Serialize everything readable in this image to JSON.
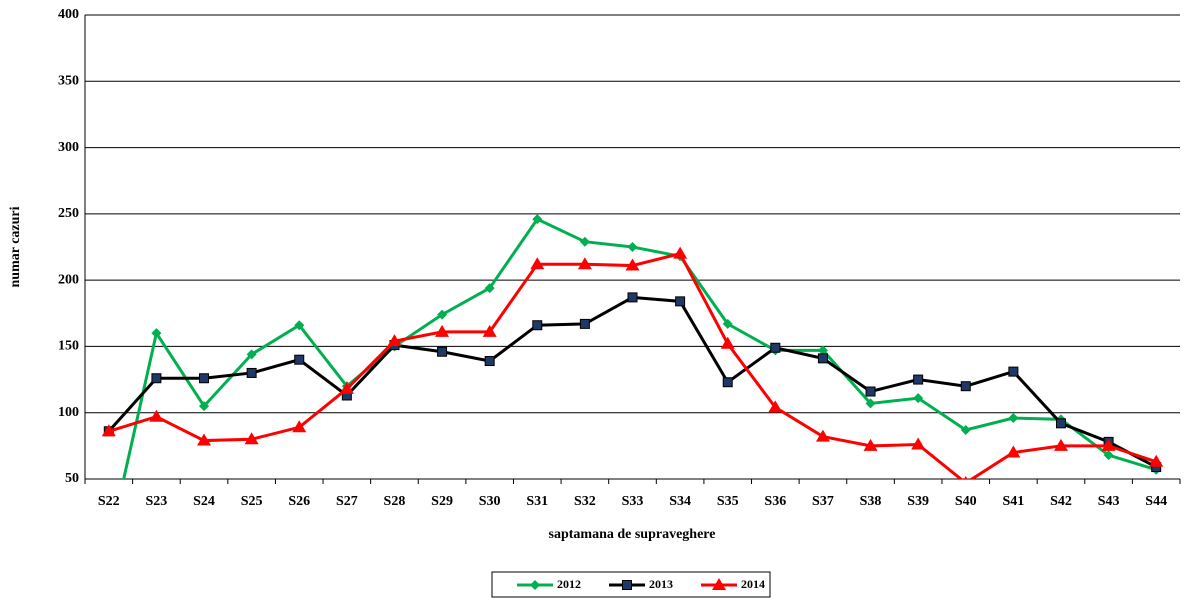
{
  "chart_data": {
    "type": "line",
    "x_label": "saptamana de supraveghere",
    "y_label": "numar cazuri",
    "categories": [
      "S22",
      "S23",
      "S24",
      "S25",
      "S26",
      "S27",
      "S28",
      "S29",
      "S30",
      "S31",
      "S32",
      "S33",
      "S34",
      "S35",
      "S36",
      "S37",
      "S38",
      "S39",
      "S40",
      "S41",
      "S42",
      "S43",
      "S44"
    ],
    "series": [
      {
        "name": "2012",
        "color": "#00b050",
        "marker": "diamond",
        "values": [
          0,
          160,
          105,
          144,
          166,
          120,
          150,
          174,
          194,
          246,
          229,
          225,
          218,
          167,
          147,
          147,
          107,
          111,
          87,
          96,
          95,
          68,
          57
        ]
      },
      {
        "name": "2013",
        "color": "#000000",
        "marker": "square",
        "values": [
          86,
          126,
          126,
          130,
          140,
          113,
          151,
          146,
          139,
          166,
          167,
          187,
          184,
          123,
          149,
          141,
          116,
          125,
          120,
          131,
          92,
          78,
          59
        ]
      },
      {
        "name": "2014",
        "color": "#ff0000",
        "marker": "triangle",
        "values": [
          86,
          97,
          79,
          80,
          89,
          118,
          154,
          161,
          161,
          212,
          212,
          211,
          220,
          152,
          104,
          82,
          75,
          76,
          47,
          70,
          75,
          75,
          63
        ]
      }
    ],
    "ylim": [
      50,
      400
    ],
    "yticks": [
      50,
      100,
      150,
      200,
      250,
      300,
      350,
      400
    ],
    "grid": true,
    "legend": "bottom"
  }
}
